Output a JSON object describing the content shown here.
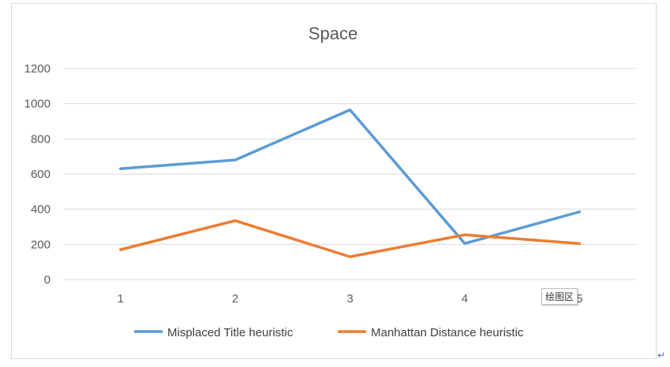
{
  "chart_data": {
    "type": "line",
    "title": "Space",
    "categories": [
      "1",
      "2",
      "3",
      "4",
      "5"
    ],
    "series": [
      {
        "name": "Misplaced Title heuristic",
        "values": [
          630,
          680,
          965,
          205,
          385
        ],
        "color": "#5b9bd5"
      },
      {
        "name": "Manhattan Distance heuristic",
        "values": [
          170,
          335,
          130,
          255,
          205
        ],
        "color": "#ed7d31"
      }
    ],
    "ylim": [
      0,
      1200
    ],
    "yticks": [
      0,
      200,
      400,
      600,
      800,
      1000,
      1200
    ],
    "grid": true,
    "legend": "bottom"
  },
  "tooltip_text": "绘图区",
  "return_mark": "↵"
}
